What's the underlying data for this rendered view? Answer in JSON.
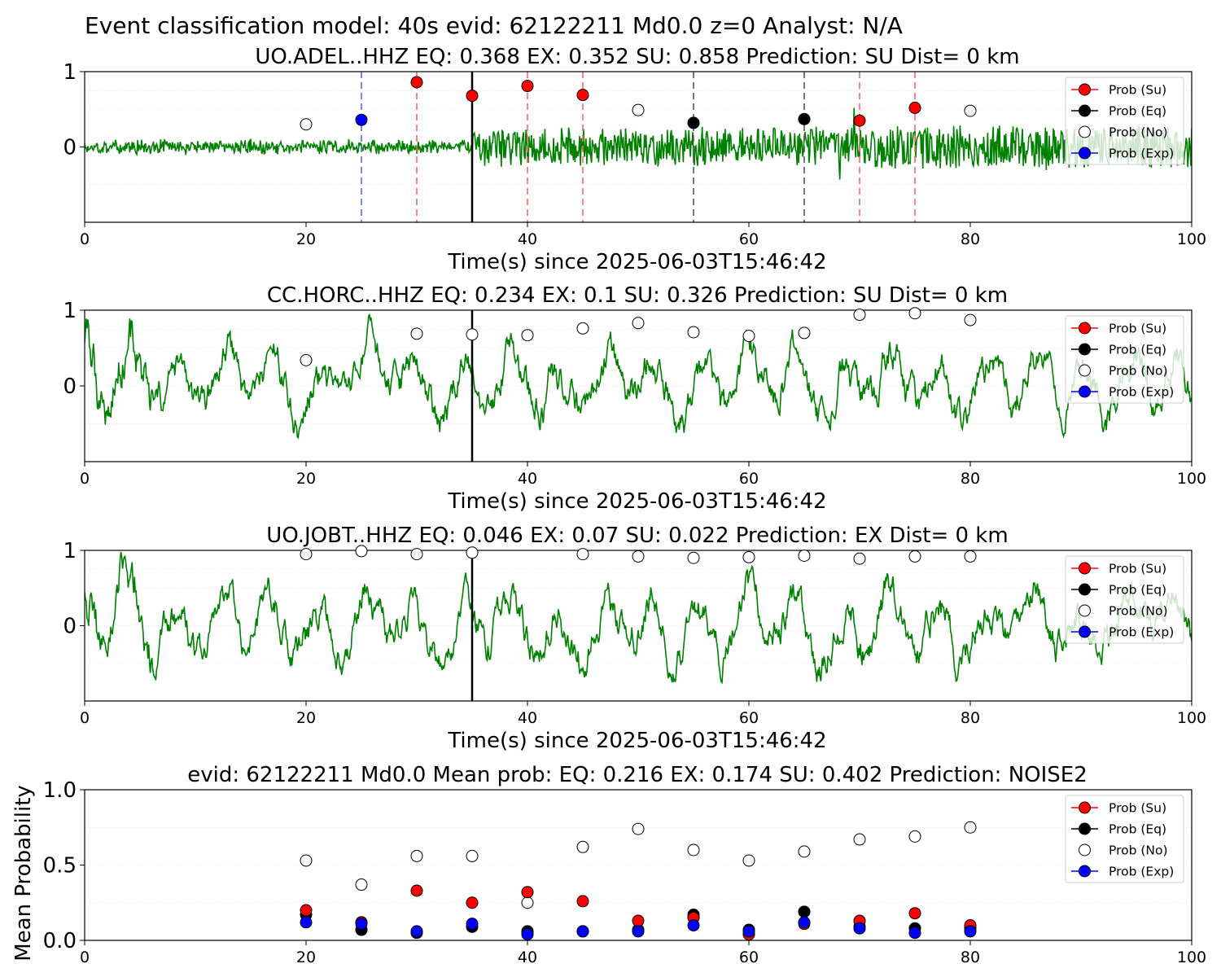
{
  "title": "Event classification model: 40s evid: 62122211 Md0.0 z=0 Analyst: N/A",
  "colors": {
    "su": "#ff0000",
    "eq": "#000000",
    "no": "#ffffff",
    "exp": "#0000ff",
    "wave": "#008000",
    "su_line": "#ff6666",
    "eq_line": "#555555",
    "exp_line": "#5566ff"
  },
  "legend": [
    "Prob (Su)",
    "Prob (Eq)",
    "Prob (No)",
    "Prob (Exp)"
  ],
  "chart_data": [
    {
      "type": "line",
      "title": "UO.ADEL..HHZ   EQ: 0.368  EX: 0.352  SU: 0.858   Prediction: SU    Dist= 0 km",
      "xlabel": "Time(s) since 2025-06-03T15:46:42",
      "xlim": [
        0,
        100
      ],
      "ylim": [
        -1,
        1
      ],
      "xticks": [
        "0",
        "20",
        "40",
        "60",
        "80",
        "100"
      ],
      "yticks": [
        "0",
        "1"
      ],
      "pick_time": 35,
      "wave_style": "noisy",
      "vlines": [
        {
          "x": 25,
          "kind": "exp"
        },
        {
          "x": 30,
          "kind": "su"
        },
        {
          "x": 40,
          "kind": "su"
        },
        {
          "x": 45,
          "kind": "su"
        },
        {
          "x": 55,
          "kind": "eq"
        },
        {
          "x": 65,
          "kind": "eq"
        },
        {
          "x": 70,
          "kind": "su"
        },
        {
          "x": 75,
          "kind": "su"
        }
      ],
      "points": [
        {
          "x": 20,
          "y": 0.3,
          "kind": "no"
        },
        {
          "x": 25,
          "y": 0.36,
          "kind": "exp"
        },
        {
          "x": 30,
          "y": 0.86,
          "kind": "su"
        },
        {
          "x": 35,
          "y": 0.68,
          "kind": "su"
        },
        {
          "x": 40,
          "y": 0.81,
          "kind": "su"
        },
        {
          "x": 45,
          "y": 0.69,
          "kind": "su"
        },
        {
          "x": 50,
          "y": 0.49,
          "kind": "no"
        },
        {
          "x": 55,
          "y": 0.32,
          "kind": "eq"
        },
        {
          "x": 65,
          "y": 0.37,
          "kind": "eq"
        },
        {
          "x": 70,
          "y": 0.35,
          "kind": "su"
        },
        {
          "x": 75,
          "y": 0.52,
          "kind": "su"
        },
        {
          "x": 80,
          "y": 0.48,
          "kind": "no"
        }
      ]
    },
    {
      "type": "line",
      "title": "CC.HORC..HHZ   EQ: 0.234  EX: 0.1  SU: 0.326   Prediction: SU    Dist= 0 km",
      "xlabel": "Time(s) since 2025-06-03T15:46:42",
      "xlim": [
        0,
        100
      ],
      "ylim": [
        -1,
        1
      ],
      "xticks": [
        "0",
        "20",
        "40",
        "60",
        "80",
        "100"
      ],
      "yticks": [
        "0",
        "1"
      ],
      "pick_time": 35,
      "wave_style": "oscillating",
      "vlines": [],
      "points": [
        {
          "x": 20,
          "y": 0.34,
          "kind": "no"
        },
        {
          "x": 30,
          "y": 0.69,
          "kind": "no"
        },
        {
          "x": 35,
          "y": 0.68,
          "kind": "no"
        },
        {
          "x": 40,
          "y": 0.67,
          "kind": "no"
        },
        {
          "x": 45,
          "y": 0.76,
          "kind": "no"
        },
        {
          "x": 50,
          "y": 0.83,
          "kind": "no"
        },
        {
          "x": 55,
          "y": 0.71,
          "kind": "no"
        },
        {
          "x": 60,
          "y": 0.66,
          "kind": "no"
        },
        {
          "x": 65,
          "y": 0.7,
          "kind": "no"
        },
        {
          "x": 70,
          "y": 0.94,
          "kind": "no"
        },
        {
          "x": 75,
          "y": 0.96,
          "kind": "no"
        },
        {
          "x": 80,
          "y": 0.87,
          "kind": "no"
        }
      ]
    },
    {
      "type": "line",
      "title": "UO.JOBT..HHZ   EQ: 0.046  EX: 0.07  SU: 0.022   Prediction: EX    Dist= 0 km",
      "xlabel": "Time(s) since 2025-06-03T15:46:42",
      "xlim": [
        0,
        100
      ],
      "ylim": [
        -1,
        1
      ],
      "xticks": [
        "0",
        "20",
        "40",
        "60",
        "80",
        "100"
      ],
      "yticks": [
        "0",
        "1"
      ],
      "pick_time": 35,
      "wave_style": "oscillating",
      "vlines": [],
      "points": [
        {
          "x": 20,
          "y": 0.95,
          "kind": "no"
        },
        {
          "x": 25,
          "y": 0.99,
          "kind": "no"
        },
        {
          "x": 30,
          "y": 0.95,
          "kind": "no"
        },
        {
          "x": 35,
          "y": 0.97,
          "kind": "no"
        },
        {
          "x": 45,
          "y": 0.95,
          "kind": "no"
        },
        {
          "x": 50,
          "y": 0.92,
          "kind": "no"
        },
        {
          "x": 55,
          "y": 0.9,
          "kind": "no"
        },
        {
          "x": 60,
          "y": 0.91,
          "kind": "no"
        },
        {
          "x": 65,
          "y": 0.93,
          "kind": "no"
        },
        {
          "x": 70,
          "y": 0.89,
          "kind": "no"
        },
        {
          "x": 75,
          "y": 0.92,
          "kind": "no"
        },
        {
          "x": 80,
          "y": 0.92,
          "kind": "no"
        }
      ]
    },
    {
      "type": "scatter",
      "title": "evid: 62122211  Md0.0   Mean prob:   EQ: 0.216  EX: 0.174  SU: 0.402   Prediction: NOISE2",
      "ylabel": "Mean Probability",
      "xlim": [
        0,
        100
      ],
      "ylim": [
        0,
        1
      ],
      "xticks": [
        "0",
        "20",
        "40",
        "60",
        "80",
        "100"
      ],
      "yticks": [
        "0.0",
        "0.5",
        "1.0"
      ],
      "x": [
        20,
        25,
        30,
        35,
        40,
        45,
        50,
        55,
        60,
        65,
        70,
        75,
        80
      ],
      "series": [
        {
          "kind": "no",
          "values": [
            0.53,
            0.37,
            0.56,
            0.56,
            0.25,
            0.62,
            0.74,
            0.6,
            0.53,
            0.59,
            0.67,
            0.69,
            0.75
          ]
        },
        {
          "kind": "eq",
          "values": [
            0.17,
            0.07,
            0.05,
            0.09,
            0.06,
            0.06,
            0.07,
            0.17,
            0.07,
            0.19,
            0.09,
            0.08,
            0.08
          ]
        },
        {
          "kind": "su",
          "values": [
            0.2,
            0.12,
            0.33,
            0.25,
            0.32,
            0.26,
            0.13,
            0.15,
            0.04,
            0.11,
            0.13,
            0.18,
            0.1
          ]
        },
        {
          "kind": "exp",
          "values": [
            0.12,
            0.11,
            0.06,
            0.11,
            0.04,
            0.06,
            0.06,
            0.1,
            0.06,
            0.12,
            0.08,
            0.05,
            0.06
          ]
        }
      ]
    }
  ]
}
